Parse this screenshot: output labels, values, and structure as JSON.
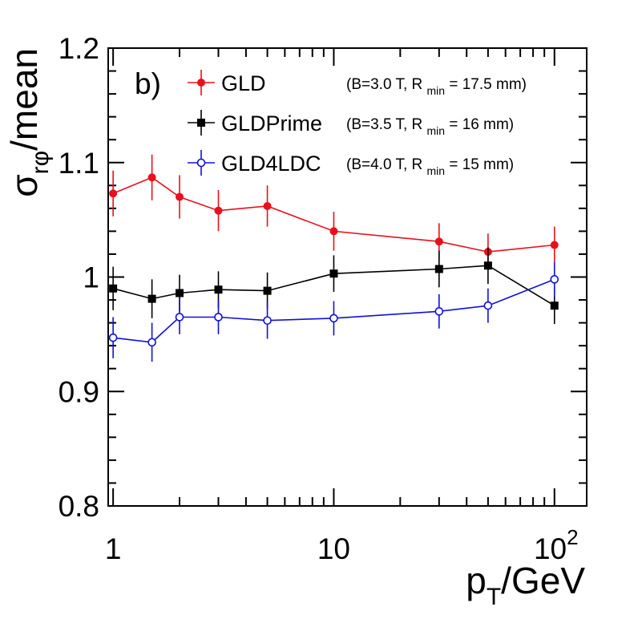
{
  "chart_data": {
    "type": "line",
    "panel_label": "b)",
    "xlabel": {
      "main": "p",
      "sub": "T",
      "rest": "/GeV"
    },
    "ylabel": {
      "main": "σ",
      "sub": "rφ",
      "rest": "/mean"
    },
    "x_scale": "log",
    "xlim": [
      0.95,
      140
    ],
    "ylim": [
      0.8,
      1.2
    ],
    "x_tick_labels": [
      {
        "value": 1,
        "label": "1"
      },
      {
        "value": 10,
        "label": "10"
      },
      {
        "value": 100,
        "label": "10",
        "exponent": "2"
      }
    ],
    "y_tick_labels": [
      {
        "value": 0.8,
        "label": "0.8"
      },
      {
        "value": 0.9,
        "label": "0.9"
      },
      {
        "value": 1.0,
        "label": "1"
      },
      {
        "value": 1.1,
        "label": "1.1"
      },
      {
        "value": 1.2,
        "label": "1.2"
      }
    ],
    "grid": false,
    "legend_position": "top",
    "x": [
      1,
      1.5,
      2,
      3,
      5,
      10,
      30,
      50,
      100
    ],
    "series": [
      {
        "name": "GLD",
        "note": {
          "before": "(B=3.0 T, R",
          "sub": "min",
          "after": "= 17.5 mm)"
        },
        "color": "#e8101a",
        "marker": "filled-circle",
        "y": [
          1.073,
          1.087,
          1.07,
          1.058,
          1.062,
          1.04,
          1.031,
          1.022,
          1.028
        ],
        "err": [
          0.02,
          0.02,
          0.019,
          0.018,
          0.018,
          0.017,
          0.016,
          0.016,
          0.016
        ]
      },
      {
        "name": "GLDPrime",
        "note": {
          "before": "(B=3.5 T, R",
          "sub": "min",
          "after": "= 16 mm)"
        },
        "color": "#000000",
        "marker": "filled-square",
        "y": [
          0.99,
          0.981,
          0.986,
          0.989,
          0.988,
          1.003,
          1.007,
          1.01,
          0.975
        ],
        "err": [
          0.019,
          0.017,
          0.016,
          0.016,
          0.016,
          0.016,
          0.016,
          0.016,
          0.016
        ]
      },
      {
        "name": "GLD4LDC",
        "note": {
          "before": "(B=4.0 T, R",
          "sub": "min",
          "after": "= 15 mm)"
        },
        "color": "#1010d8",
        "marker": "open-circle",
        "y": [
          0.947,
          0.943,
          0.965,
          0.965,
          0.962,
          0.964,
          0.97,
          0.975,
          0.998
        ],
        "err": [
          0.018,
          0.017,
          0.015,
          0.015,
          0.016,
          0.015,
          0.015,
          0.015,
          0.015
        ]
      }
    ]
  }
}
